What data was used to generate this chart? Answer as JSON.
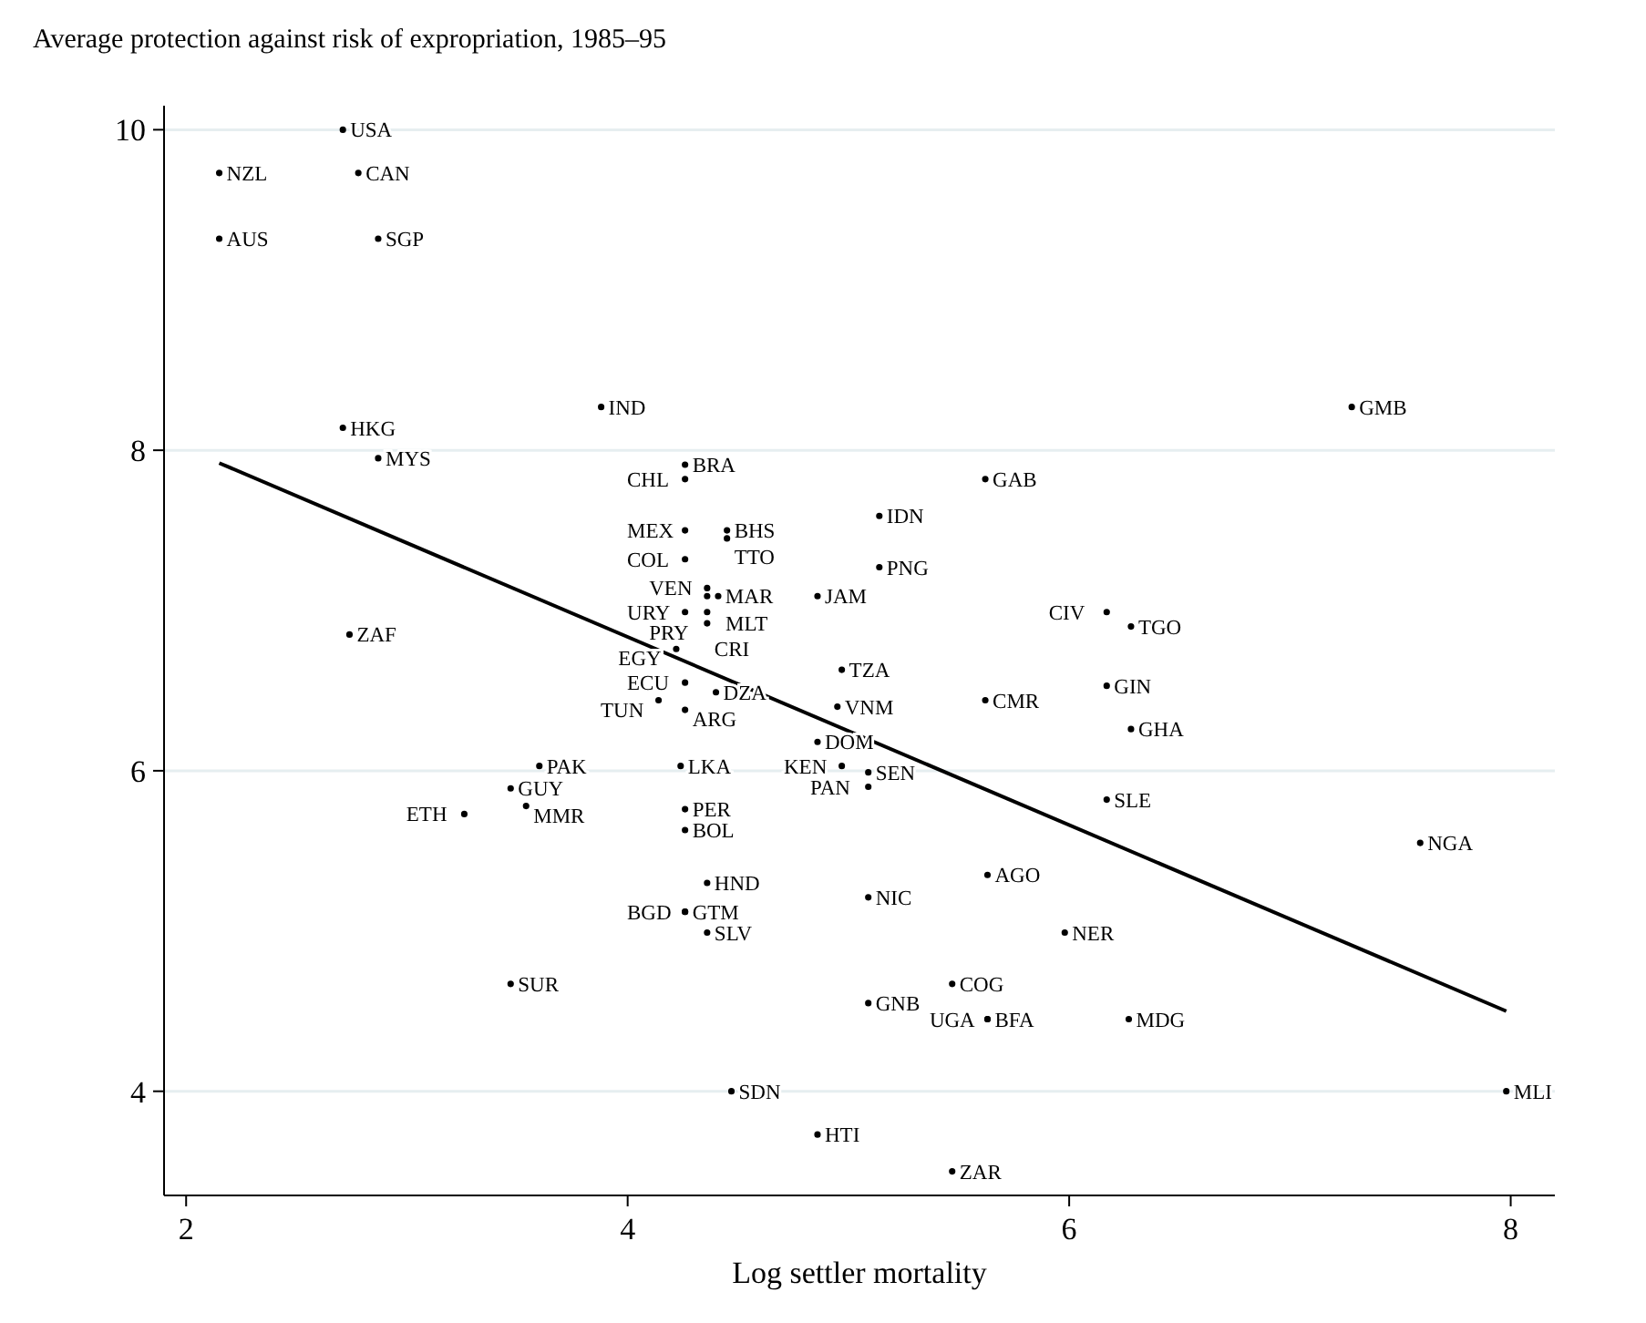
{
  "chart_data": {
    "type": "scatter",
    "title": "Average protection against risk of expropriation, 1985–95",
    "xlabel": "Log settler mortality",
    "xlim": [
      1.9,
      8.2
    ],
    "xticks": [
      2,
      4,
      6,
      8
    ],
    "ylim": [
      3.35,
      10.15
    ],
    "yticks": [
      4,
      6,
      8,
      10
    ],
    "grid": "y",
    "series": [
      {
        "marker": "circle",
        "color": "#000000",
        "x": [
          2.71,
          2.15,
          2.78,
          2.15,
          2.87,
          2.71,
          2.87,
          3.88,
          7.28,
          4.26,
          4.26,
          5.62,
          5.14,
          4.26,
          4.45,
          4.45,
          4.26,
          5.14,
          4.36,
          4.36,
          4.41,
          4.86,
          4.26,
          4.36,
          4.36,
          6.17,
          6.28,
          2.74,
          4.22,
          4.97,
          4.26,
          4.4,
          4.14,
          4.26,
          6.17,
          5.62,
          4.95,
          6.28,
          4.86,
          3.6,
          4.24,
          4.97,
          5.09,
          5.09,
          3.47,
          6.17,
          3.54,
          3.26,
          4.26,
          4.26,
          7.59,
          4.36,
          5.63,
          5.09,
          4.26,
          4.26,
          5.98,
          4.36,
          3.47,
          5.47,
          5.09,
          5.63,
          5.63,
          6.27,
          4.47,
          7.98,
          4.86,
          5.47
        ],
        "values": [
          10.0,
          9.73,
          9.73,
          9.32,
          9.32,
          8.14,
          7.95,
          8.27,
          8.27,
          7.91,
          7.82,
          7.82,
          7.59,
          7.5,
          7.5,
          7.45,
          7.32,
          7.27,
          7.14,
          7.09,
          7.09,
          7.09,
          6.99,
          6.92,
          6.99,
          6.99,
          6.9,
          6.85,
          6.76,
          6.63,
          6.55,
          6.49,
          6.44,
          6.38,
          6.53,
          6.44,
          6.4,
          6.26,
          6.18,
          6.03,
          6.03,
          6.03,
          5.99,
          5.9,
          5.89,
          5.82,
          5.78,
          5.73,
          5.76,
          5.63,
          5.55,
          5.3,
          5.35,
          5.21,
          5.12,
          5.12,
          4.99,
          4.99,
          4.67,
          4.67,
          4.55,
          4.45,
          4.45,
          4.45,
          4.0,
          4.0,
          3.73,
          3.5
        ],
        "value_labels": [
          "USA",
          "NZL",
          "CAN",
          "AUS",
          "SGP",
          "HKG",
          "MYS",
          "IND",
          "GMB",
          "BRA",
          "CHL",
          "GAB",
          "IDN",
          "MEX",
          "BHS",
          "TTO",
          "COL",
          "PNG",
          "VEN",
          "MAR",
          "MLT",
          "JAM",
          "URY",
          "PRY",
          "CRI",
          "CIV",
          "TGO",
          "ZAF",
          "EGY",
          "TZA",
          "ECU",
          "DZA",
          "TUN",
          "ARG",
          "GIN",
          "CMR",
          "VNM",
          "GHA",
          "DOM",
          "PAK",
          "LKA",
          "KEN",
          "SEN",
          "PAN",
          "GUY",
          "SLE",
          "MMR",
          "ETH",
          "PER",
          "BOL",
          "NGA",
          "HND",
          "AGO",
          "NIC",
          "GTM",
          "BGD",
          "NER",
          "SLV",
          "SUR",
          "COG",
          "GNB",
          "BFA",
          "UGA",
          "MDG",
          "SDN",
          "MLI",
          "HTI",
          "ZAR"
        ]
      },
      {
        "type": "line",
        "color": "#000000",
        "x": [
          2.15,
          7.98
        ],
        "values": [
          7.92,
          4.5
        ],
        "line_style": "solid"
      }
    ]
  }
}
